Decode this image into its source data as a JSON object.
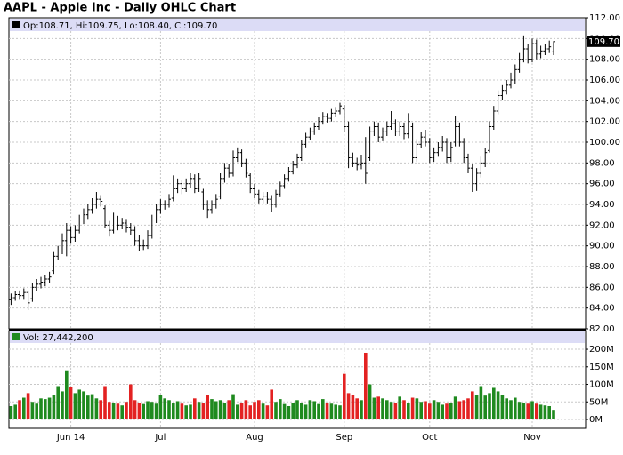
{
  "chart_data": {
    "type": "ohlc",
    "title": "AAPL - Apple Inc - Daily OHLC Chart",
    "grid": true,
    "xlim": [
      -0.5,
      134.5
    ],
    "xticks": [
      {
        "value": 14,
        "label": "Jun 14"
      },
      {
        "value": 35,
        "label": "Jul"
      },
      {
        "value": 57,
        "label": "Aug"
      },
      {
        "value": 78,
        "label": "Sep"
      },
      {
        "value": 98,
        "label": "Oct"
      },
      {
        "value": 122,
        "label": "Nov"
      }
    ],
    "price": {
      "legend": "Op:108.71, Hi:109.75, Lo:108.40, Cl:109.70",
      "color": "#000000",
      "ylim": [
        82,
        112
      ],
      "yticks": [
        {
          "value": 82,
          "label": "82.00"
        },
        {
          "value": 84,
          "label": "84.00"
        },
        {
          "value": 86,
          "label": "86.00"
        },
        {
          "value": 88,
          "label": "88.00"
        },
        {
          "value": 90,
          "label": "90.00"
        },
        {
          "value": 92,
          "label": "92.00"
        },
        {
          "value": 94,
          "label": "94.00"
        },
        {
          "value": 96,
          "label": "96.00"
        },
        {
          "value": 98,
          "label": "98.00"
        },
        {
          "value": 100,
          "label": "100.00"
        },
        {
          "value": 102,
          "label": "102.00"
        },
        {
          "value": 104,
          "label": "104.00"
        },
        {
          "value": 106,
          "label": "106.00"
        },
        {
          "value": 108,
          "label": "108.00"
        },
        {
          "value": 110,
          "label": "110.00"
        },
        {
          "value": 112,
          "label": "112.00"
        }
      ],
      "last_marker": {
        "value": 109.7,
        "label": "109.70"
      },
      "ohlc": [
        [
          84.8,
          85.4,
          84.3,
          85.0
        ],
        [
          85.0,
          85.6,
          84.7,
          85.3
        ],
        [
          85.3,
          85.7,
          84.8,
          85.2
        ],
        [
          85.2,
          85.9,
          84.8,
          85.5
        ],
        [
          85.5,
          85.7,
          83.8,
          84.5
        ],
        [
          84.9,
          86.4,
          84.6,
          86.0
        ],
        [
          86.0,
          86.8,
          85.6,
          86.3
        ],
        [
          86.3,
          87.0,
          85.9,
          86.5
        ],
        [
          86.5,
          87.2,
          86.1,
          86.8
        ],
        [
          86.8,
          87.5,
          86.4,
          87.0
        ],
        [
          87.6,
          89.4,
          87.3,
          89.0
        ],
        [
          89.0,
          90.0,
          88.6,
          89.5
        ],
        [
          89.5,
          91.2,
          89.2,
          90.5
        ],
        [
          90.5,
          92.2,
          89.0,
          91.5
        ],
        [
          91.5,
          91.9,
          90.2,
          90.8
        ],
        [
          90.8,
          92.0,
          90.4,
          91.5
        ],
        [
          91.5,
          93.0,
          91.2,
          92.5
        ],
        [
          92.5,
          93.6,
          92.1,
          93.0
        ],
        [
          93.0,
          94.0,
          92.6,
          93.5
        ],
        [
          93.5,
          94.6,
          93.1,
          94.0
        ],
        [
          94.0,
          95.2,
          93.6,
          94.5
        ],
        [
          94.5,
          94.9,
          93.8,
          94.3
        ],
        [
          93.6,
          93.9,
          91.7,
          92.0
        ],
        [
          92.0,
          92.4,
          90.9,
          91.5
        ],
        [
          91.5,
          93.2,
          91.2,
          92.5
        ],
        [
          92.5,
          92.9,
          91.5,
          92.0
        ],
        [
          92.0,
          92.7,
          91.6,
          92.2
        ],
        [
          92.2,
          92.6,
          91.3,
          91.8
        ],
        [
          91.8,
          92.2,
          91.0,
          91.5
        ],
        [
          91.5,
          91.9,
          90.0,
          90.5
        ],
        [
          90.5,
          91.0,
          89.5,
          90.0
        ],
        [
          90.0,
          90.6,
          89.6,
          90.0
        ],
        [
          90.0,
          91.5,
          89.7,
          91.0
        ],
        [
          91.0,
          93.0,
          90.7,
          92.5
        ],
        [
          92.5,
          94.0,
          92.2,
          93.5
        ],
        [
          93.5,
          94.5,
          93.1,
          94.0
        ],
        [
          94.0,
          94.4,
          93.5,
          94.0
        ],
        [
          94.0,
          95.0,
          93.7,
          94.5
        ],
        [
          94.6,
          96.8,
          94.3,
          95.5
        ],
        [
          95.5,
          96.5,
          95.1,
          96.0
        ],
        [
          96.0,
          96.4,
          95.0,
          95.5
        ],
        [
          95.5,
          96.5,
          95.2,
          96.0
        ],
        [
          96.0,
          97.0,
          95.6,
          96.5
        ],
        [
          96.5,
          96.9,
          95.1,
          95.5
        ],
        [
          95.5,
          97.0,
          95.2,
          96.5
        ],
        [
          95.2,
          95.5,
          93.5,
          94.0
        ],
        [
          94.0,
          94.4,
          92.7,
          93.5
        ],
        [
          93.5,
          94.4,
          93.1,
          94.0
        ],
        [
          94.0,
          95.0,
          93.6,
          94.5
        ],
        [
          94.8,
          97.0,
          94.5,
          96.5
        ],
        [
          96.5,
          98.0,
          96.1,
          97.5
        ],
        [
          97.5,
          97.9,
          96.6,
          97.0
        ],
        [
          97.0,
          99.2,
          96.7,
          98.5
        ],
        [
          98.5,
          99.5,
          98.1,
          99.0
        ],
        [
          99.0,
          99.3,
          97.6,
          98.0
        ],
        [
          98.0,
          98.4,
          96.6,
          97.0
        ],
        [
          96.8,
          97.0,
          95.1,
          95.5
        ],
        [
          95.5,
          96.0,
          94.6,
          95.0
        ],
        [
          95.0,
          95.4,
          94.1,
          94.5
        ],
        [
          94.5,
          95.2,
          94.1,
          94.8
        ],
        [
          94.8,
          95.2,
          94.1,
          94.5
        ],
        [
          94.5,
          94.9,
          93.3,
          94.0
        ],
        [
          94.0,
          95.4,
          93.7,
          95.0
        ],
        [
          95.0,
          96.2,
          94.7,
          95.8
        ],
        [
          95.8,
          96.9,
          95.5,
          96.5
        ],
        [
          96.5,
          97.6,
          96.2,
          97.2
        ],
        [
          97.2,
          98.2,
          96.9,
          97.8
        ],
        [
          97.8,
          98.9,
          97.5,
          98.5
        ],
        [
          98.5,
          100.2,
          98.2,
          99.8
        ],
        [
          99.8,
          100.9,
          99.5,
          100.5
        ],
        [
          100.5,
          101.4,
          100.2,
          101.0
        ],
        [
          101.0,
          101.9,
          100.7,
          101.5
        ],
        [
          101.5,
          102.4,
          101.2,
          102.0
        ],
        [
          102.0,
          102.9,
          101.7,
          102.5
        ],
        [
          102.5,
          102.8,
          101.9,
          102.3
        ],
        [
          102.3,
          103.2,
          102.0,
          102.8
        ],
        [
          102.8,
          103.4,
          102.4,
          103.0
        ],
        [
          103.0,
          103.8,
          102.7,
          103.5
        ],
        [
          103.2,
          103.6,
          101.0,
          101.5
        ],
        [
          101.5,
          102.0,
          97.5,
          98.5
        ],
        [
          98.5,
          99.0,
          97.6,
          98.0
        ],
        [
          98.0,
          98.5,
          97.3,
          97.8
        ],
        [
          97.8,
          98.8,
          97.4,
          98.0
        ],
        [
          98.0,
          100.5,
          96.0,
          97.0
        ],
        [
          98.5,
          101.5,
          98.2,
          101.0
        ],
        [
          101.0,
          102.0,
          100.6,
          101.5
        ],
        [
          101.5,
          101.9,
          100.0,
          100.5
        ],
        [
          100.5,
          101.4,
          100.1,
          101.0
        ],
        [
          101.0,
          102.0,
          100.6,
          101.5
        ],
        [
          101.5,
          103.0,
          101.2,
          101.8
        ],
        [
          101.8,
          102.2,
          100.6,
          101.0
        ],
        [
          101.0,
          102.0,
          100.6,
          101.5
        ],
        [
          101.5,
          101.9,
          100.3,
          100.8
        ],
        [
          100.8,
          102.8,
          100.4,
          102.0
        ],
        [
          101.5,
          101.9,
          98.0,
          98.5
        ],
        [
          98.5,
          100.3,
          98.1,
          99.8
        ],
        [
          99.8,
          101.0,
          99.4,
          100.5
        ],
        [
          100.5,
          101.2,
          99.6,
          100.0
        ],
        [
          100.0,
          100.4,
          98.0,
          98.5
        ],
        [
          98.5,
          99.5,
          98.1,
          99.0
        ],
        [
          99.0,
          100.0,
          98.6,
          99.5
        ],
        [
          99.5,
          100.6,
          99.1,
          100.0
        ],
        [
          100.0,
          100.4,
          98.0,
          98.5
        ],
        [
          98.5,
          100.0,
          98.1,
          99.5
        ],
        [
          100.0,
          102.5,
          99.6,
          101.5
        ],
        [
          101.5,
          101.9,
          99.6,
          100.0
        ],
        [
          100.0,
          100.4,
          98.0,
          98.5
        ],
        [
          98.5,
          98.9,
          97.0,
          97.5
        ],
        [
          97.5,
          97.9,
          95.2,
          96.0
        ],
        [
          96.0,
          97.5,
          95.3,
          97.0
        ],
        [
          97.0,
          98.6,
          96.6,
          98.0
        ],
        [
          98.0,
          99.4,
          97.6,
          99.0
        ],
        [
          99.2,
          102.0,
          99.0,
          101.5
        ],
        [
          101.5,
          103.5,
          101.2,
          103.0
        ],
        [
          103.0,
          105.0,
          102.7,
          104.5
        ],
        [
          104.5,
          105.5,
          104.1,
          105.0
        ],
        [
          105.0,
          106.0,
          104.6,
          105.5
        ],
        [
          105.5,
          106.7,
          105.2,
          106.0
        ],
        [
          106.0,
          107.5,
          105.6,
          107.0
        ],
        [
          107.0,
          108.6,
          106.7,
          108.0
        ],
        [
          108.0,
          110.3,
          107.7,
          109.0
        ],
        [
          109.0,
          109.5,
          107.6,
          108.0
        ],
        [
          108.0,
          110.0,
          107.7,
          109.5
        ],
        [
          109.5,
          109.9,
          108.0,
          108.5
        ],
        [
          108.5,
          109.3,
          108.1,
          108.8
        ],
        [
          108.8,
          109.5,
          108.4,
          109.0
        ],
        [
          109.0,
          109.8,
          108.6,
          109.2
        ],
        [
          108.71,
          109.75,
          108.4,
          109.7
        ]
      ]
    },
    "volume": {
      "legend": "Vol: 27,442,200",
      "up_color": "#1f8a1f",
      "down_color": "#e32222",
      "ylim": [
        0,
        230
      ],
      "yticks": [
        {
          "value": 0,
          "label": "0M"
        },
        {
          "value": 50,
          "label": "50M"
        },
        {
          "value": 100,
          "label": "100M"
        },
        {
          "value": 150,
          "label": "150M"
        },
        {
          "value": 200,
          "label": "200M"
        }
      ],
      "values": [
        38,
        42,
        55,
        62,
        75,
        50,
        45,
        60,
        58,
        62,
        70,
        95,
        80,
        140,
        92,
        75,
        85,
        80,
        68,
        72,
        60,
        55,
        95,
        50,
        48,
        45,
        40,
        50,
        100,
        55,
        48,
        44,
        52,
        50,
        45,
        70,
        60,
        55,
        48,
        52,
        45,
        40,
        42,
        60,
        50,
        48,
        70,
        58,
        52,
        55,
        48,
        55,
        72,
        42,
        48,
        55,
        40,
        50,
        55,
        45,
        40,
        85,
        50,
        58,
        44,
        38,
        48,
        55,
        48,
        42,
        55,
        52,
        44,
        58,
        48,
        45,
        42,
        40,
        130,
        75,
        70,
        60,
        55,
        190,
        100,
        62,
        65,
        60,
        55,
        50,
        48,
        65,
        55,
        48,
        62,
        60,
        50,
        52,
        45,
        55,
        50,
        42,
        45,
        48,
        65,
        52,
        55,
        60,
        80,
        70,
        95,
        68,
        75,
        90,
        80,
        70,
        60,
        55,
        62,
        50,
        48,
        45,
        52,
        45,
        42,
        40,
        38,
        27.4422
      ]
    }
  }
}
